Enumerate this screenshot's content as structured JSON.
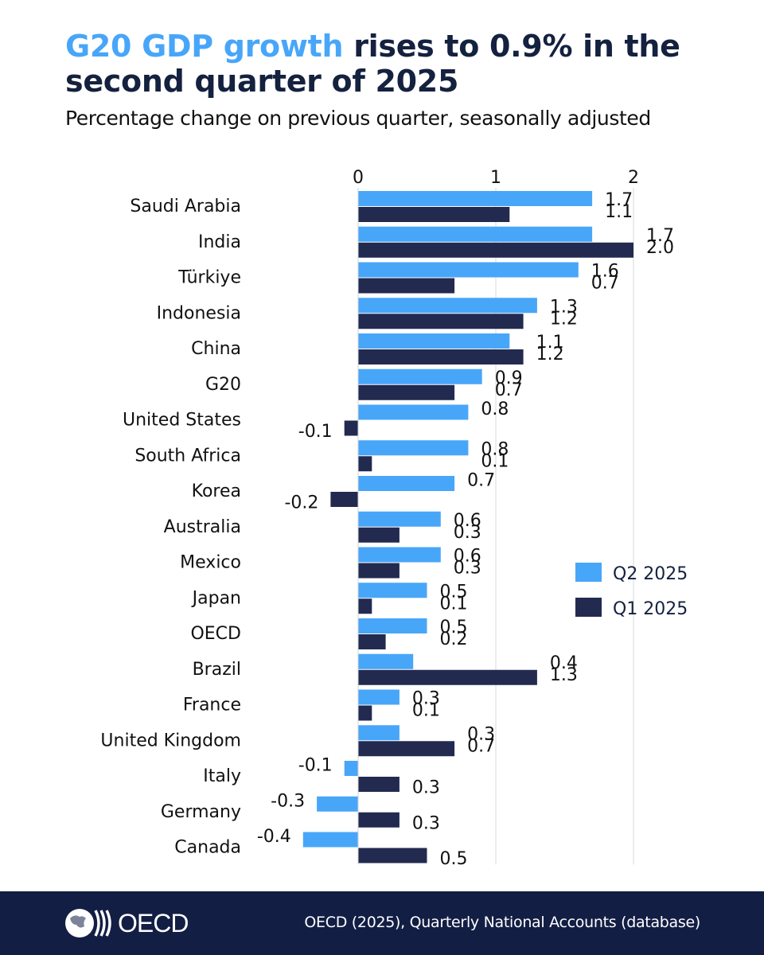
{
  "title": {
    "highlight": "G20 GDP growth",
    "rest": " rises to 0.9% in the second quarter of 2025"
  },
  "subtitle": "Percentage change on previous quarter, seasonally adjusted",
  "colors": {
    "q2": "#48a6f9",
    "q1": "#222a50",
    "highlight": "#48a6f9",
    "footer_bg": "#131e44"
  },
  "chart_data": {
    "type": "bar",
    "orientation": "horizontal",
    "title": "G20 GDP growth rises to 0.9% in the second quarter of 2025",
    "subtitle": "Percentage change on previous quarter, seasonally adjusted",
    "xlabel": "",
    "ylabel": "",
    "xlim": [
      -0.5,
      2.0
    ],
    "xticks": [
      0,
      1,
      2
    ],
    "xtick_labels": [
      "0",
      "1",
      "2"
    ],
    "grid": true,
    "legend_position": "right",
    "categories": [
      "Saudi Arabia",
      "India",
      "Türkiye",
      "Indonesia",
      "China",
      "G20",
      "United States",
      "South Africa",
      "Korea",
      "Australia",
      "Mexico",
      "Japan",
      "OECD",
      "Brazil",
      "France",
      "United Kingdom",
      "Italy",
      "Germany",
      "Canada"
    ],
    "series": [
      {
        "name": "Q2 2025",
        "values": [
          1.7,
          1.7,
          1.6,
          1.3,
          1.1,
          0.9,
          0.8,
          0.8,
          0.7,
          0.6,
          0.6,
          0.5,
          0.5,
          0.4,
          0.3,
          0.3,
          -0.1,
          -0.3,
          -0.4
        ]
      },
      {
        "name": "Q1 2025",
        "values": [
          1.1,
          2.0,
          0.7,
          1.2,
          1.2,
          0.7,
          -0.1,
          0.1,
          -0.2,
          0.3,
          0.3,
          0.1,
          0.2,
          1.3,
          0.1,
          0.7,
          0.3,
          0.3,
          0.5
        ]
      }
    ]
  },
  "footer": {
    "logo_text": "OECD",
    "source": "OECD (2025), Quarterly National Accounts (database)"
  }
}
